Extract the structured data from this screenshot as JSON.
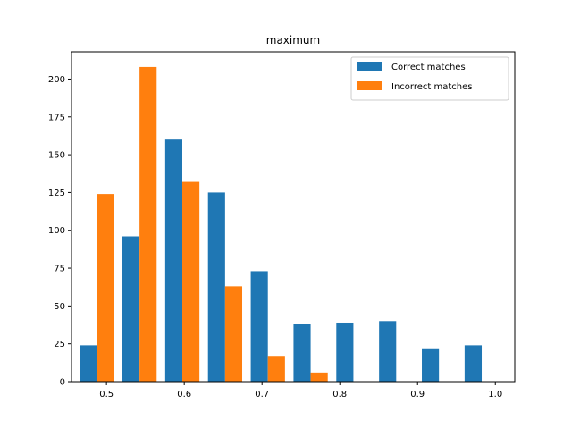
{
  "chart_data": {
    "type": "bar",
    "title": "maximum",
    "xlabel": "",
    "ylabel": "",
    "xlim": [
      0.455,
      1.025
    ],
    "ylim": [
      0,
      218
    ],
    "bin_edges": [
      0.46,
      0.515,
      0.57,
      0.625,
      0.68,
      0.735,
      0.79,
      0.845,
      0.9,
      0.955,
      1.01
    ],
    "x_ticks": [
      0.5,
      0.6,
      0.7,
      0.8,
      0.9,
      1.0
    ],
    "x_tick_labels": [
      "0.5",
      "0.6",
      "0.7",
      "0.8",
      "0.9",
      "1.0"
    ],
    "y_ticks": [
      0,
      25,
      50,
      75,
      100,
      125,
      150,
      175,
      200
    ],
    "y_tick_labels": [
      "0",
      "25",
      "50",
      "75",
      "100",
      "125",
      "150",
      "175",
      "200"
    ],
    "series": [
      {
        "name": "Correct matches",
        "color": "#1f77b4",
        "values": [
          24,
          96,
          160,
          125,
          73,
          38,
          39,
          40,
          22,
          24
        ]
      },
      {
        "name": "Incorrect matches",
        "color": "#ff7f0e",
        "values": [
          124,
          208,
          132,
          63,
          17,
          6,
          0,
          0,
          0,
          0
        ]
      }
    ],
    "legend_position": "top-right",
    "grid": false
  }
}
